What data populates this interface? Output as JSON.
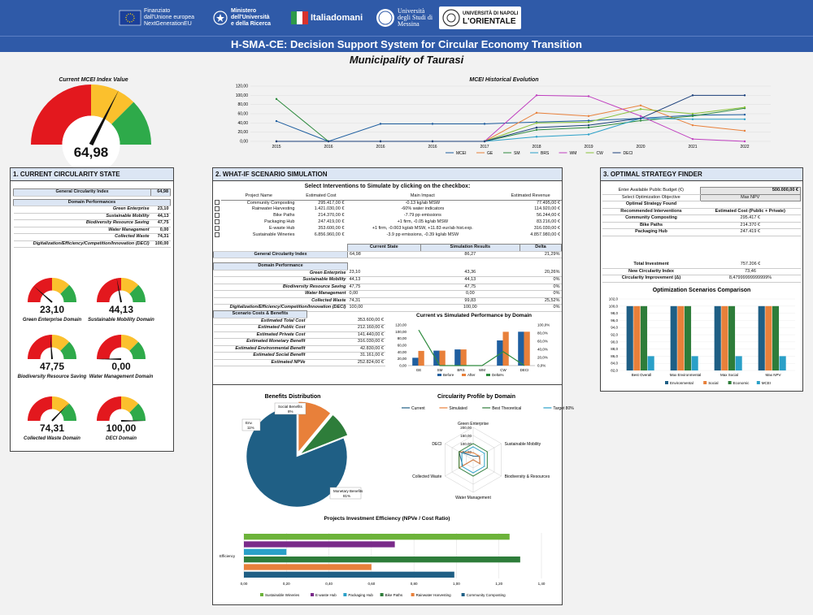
{
  "banner": {
    "logos": [
      {
        "name": "eu-logo",
        "lines": [
          "Finanziato",
          "dall'Unione europea",
          "NextGenerationEU"
        ]
      },
      {
        "name": "ministero-logo",
        "lines": [
          "Ministero",
          "dell'Università",
          "e della Ricerca"
        ]
      },
      {
        "name": "italiadomani-logo",
        "lines": [
          "Italiadomani"
        ]
      },
      {
        "name": "unime-logo",
        "lines": [
          "Università",
          "degli Studi di",
          "Messina"
        ]
      },
      {
        "name": "orientale-logo",
        "lines": [
          "UNIVERSITÀ DI NAPOLI",
          "L'ORIENTALE"
        ]
      }
    ]
  },
  "title": "H-SMA-CE: Decision Support System for Circular Economy Transition",
  "subtitle": "Municipality of Taurasi",
  "main_gauge": {
    "title": "Current MCEI Index Value",
    "value": "64,98",
    "level": 64.98
  },
  "history": {
    "title": "MCEI Historical Evolution",
    "years": [
      "2015",
      "2016",
      "2016",
      "2016",
      "2017",
      "2018",
      "2019",
      "2020",
      "2021",
      "2022"
    ],
    "y_ticks": [
      "0,00",
      "20,00",
      "40,00",
      "60,00",
      "80,00",
      "100,00",
      "120,00"
    ],
    "series": [
      {
        "name": "MCEI",
        "color": "#1f5fa0",
        "values": [
          44,
          0,
          38,
          38,
          38,
          42,
          45,
          50,
          57,
          58
        ]
      },
      {
        "name": "GE",
        "color": "#e8803a",
        "values": [
          0,
          0,
          0,
          0,
          0,
          62,
          55,
          78,
          35,
          23
        ]
      },
      {
        "name": "SM",
        "color": "#2e8b3e",
        "values": [
          92,
          0,
          0,
          0,
          0,
          25,
          30,
          45,
          55,
          72
        ]
      },
      {
        "name": "BRS",
        "color": "#2aa0c8",
        "values": [
          0,
          0,
          0,
          0,
          0,
          10,
          15,
          50,
          48,
          48
        ]
      },
      {
        "name": "WM",
        "color": "#c040c0",
        "values": [
          0,
          0,
          0,
          0,
          0,
          100,
          98,
          55,
          5,
          0
        ]
      },
      {
        "name": "CW",
        "color": "#8ac23a",
        "values": [
          0,
          0,
          0,
          0,
          0,
          40,
          42,
          70,
          60,
          74
        ]
      },
      {
        "name": "DECI",
        "color": "#1a3f7a",
        "values": [
          0,
          0,
          0,
          0,
          0,
          30,
          35,
          50,
          100,
          100
        ]
      }
    ]
  },
  "section1": {
    "header": "1. CURRENT CIRCULARITY STATE",
    "general_label": "General Circularity Index",
    "general_value": "64,98",
    "domain_header": "Domain Performances",
    "domains": [
      {
        "label": "Green Enterprise",
        "value": "23,10"
      },
      {
        "label": "Sustainable Mobility",
        "value": "44,13"
      },
      {
        "label": "Biodiversity Resource Saving",
        "value": "47,75"
      },
      {
        "label": "Water Management",
        "value": "0,00"
      },
      {
        "label": "Collected Waste",
        "value": "74,31"
      },
      {
        "label": "Digitalization/Efficiency/Competition/Innovation (DECI)",
        "value": "100,00"
      }
    ],
    "gauges": [
      {
        "value": "23,10",
        "level": 23.1,
        "label": "Green Enterprise Domain"
      },
      {
        "value": "44,13",
        "level": 44.13,
        "label": "Sustainable Mobility Domain"
      },
      {
        "value": "47,75",
        "level": 47.75,
        "label": "Biodiversity Resource Saving"
      },
      {
        "value": "0,00",
        "level": 0,
        "label": "Water Management Domain"
      },
      {
        "value": "74,31",
        "level": 74.31,
        "label": "Collected Waste Domain"
      },
      {
        "value": "100,00",
        "level": 100,
        "label": "DECI Domain"
      }
    ]
  },
  "section2": {
    "header": "2. WHAT-IF SCENARIO SIMULATION",
    "select_title": "Select Interventions to Simulate by clicking on the checkbox:",
    "columns": [
      "Project Name",
      "Estimated Cost",
      "Main Impact",
      "Estimated Revenue"
    ],
    "projects": [
      {
        "name": "Community Composting",
        "cost": "295.417,00 €",
        "impact": "-0.13 kg/ab MSW",
        "revenue": "77.495,00 €"
      },
      {
        "name": "Rainwater Harvesting",
        "cost": "1.421.030,00 €",
        "impact": "-60% water indicators",
        "revenue": "114.920,00 €"
      },
      {
        "name": "Bike Paths",
        "cost": "214.370,00 €",
        "impact": "-7.79 pp emissions",
        "revenue": "56.244,00 €"
      },
      {
        "name": "Packaging Hub",
        "cost": "247.419,00 €",
        "impact": "+1 firm, -0.05 kg/ab MSW",
        "revenue": "83.216,00 €"
      },
      {
        "name": "E-waste Hub",
        "cost": "353.600,00 €",
        "impact": "+1 firm, -0.003 kg/ab MSW, +11.83 eur/ab hist.exp.",
        "revenue": "316.030,00 €"
      },
      {
        "name": "Sustainable Wineries",
        "cost": "6.856.960,00 €",
        "impact": "-3.9 pp emissions, -0.39 kg/ab MSW",
        "revenue": "4.857.980,00 €"
      }
    ],
    "sim_columns": [
      "Current State",
      "Simulation Results",
      "Delta"
    ],
    "sim_general": {
      "label": "General Circularity Index",
      "current": "64,98",
      "sim": "86,27",
      "delta": "21,29%"
    },
    "domain_perf_header": "Domain Performance",
    "sim_domains": [
      {
        "label": "Green Enterprise",
        "current": "23,10",
        "sim": "43,36",
        "delta": "20,26%"
      },
      {
        "label": "Sustainable Mobility",
        "current": "44,13",
        "sim": "44,13",
        "delta": "0%"
      },
      {
        "label": "Biodiversity Resource Saving",
        "current": "47,75",
        "sim": "47,75",
        "delta": "0%"
      },
      {
        "label": "Water Management",
        "current": "0,00",
        "sim": "0,00",
        "delta": "0%"
      },
      {
        "label": "Collected Waste",
        "current": "74,31",
        "sim": "99,83",
        "delta": "25,52%"
      },
      {
        "label": "Digitalization/Efficiency/Competition/Innovation (DECI)",
        "current": "100,00",
        "sim": "100,00",
        "delta": "0%"
      }
    ],
    "costs_header": "Scenario Costs & Benefits",
    "costs": [
      {
        "label": "Estimated Total Cost",
        "value": "353.600,00 €"
      },
      {
        "label": "Estimated Public Cost",
        "value": "212.160,00 €"
      },
      {
        "label": "Estimated Private Cost",
        "value": "141.440,00 €"
      },
      {
        "label": "Estimated Monetary Benefit",
        "value": "316.030,00 €"
      },
      {
        "label": "Estimated Environmental Benefit",
        "value": "42.830,00 €"
      },
      {
        "label": "Estimated Social Benefit",
        "value": "31.161,00 €"
      },
      {
        "label": "Estimated NPVe",
        "value": "252.824,00 €"
      }
    ]
  },
  "chart_data": [
    {
      "type": "bar",
      "title": "Current vs Simulated Performance by Domain",
      "categories": [
        "GE",
        "SM",
        "BRS",
        "WM",
        "CW",
        "DECI"
      ],
      "y_ticks": [
        "0,00",
        "20,00",
        "40,00",
        "60,00",
        "80,00",
        "100,00",
        "120,00"
      ],
      "y2_ticks": [
        "0,0%",
        "20,0%",
        "40,0%",
        "60,0%",
        "80,0%",
        "100,0%"
      ],
      "series": [
        {
          "name": "Before",
          "color": "#1f5fa0",
          "values": [
            23.1,
            44.13,
            47.75,
            0,
            74.31,
            100
          ]
        },
        {
          "name": "After",
          "color": "#e8803a",
          "values": [
            43.36,
            44.13,
            47.75,
            0,
            99.83,
            100
          ]
        },
        {
          "name": "Delta%",
          "color": "#2e8b3e",
          "values": [
            87.7,
            0,
            0,
            0,
            34.3,
            0
          ]
        }
      ]
    },
    {
      "type": "pie",
      "title": "Benefits Distribution",
      "slices": [
        {
          "label": "Monetary Benefits",
          "pct": "81%",
          "value": 81,
          "color": "#1f5f85"
        },
        {
          "label": "Environmental Benefits",
          "pct": "11%",
          "value": 11,
          "color": "#e8803a"
        },
        {
          "label": "Social Benefits",
          "pct": "8%",
          "value": 8,
          "color": "#2e7d3a"
        }
      ]
    },
    {
      "type": "radar",
      "title": "Circularity Profile by Domain",
      "axes": [
        "Green Enterprise",
        "Sustainable Mobility",
        "Biodiversity & Resources",
        "Water Management",
        "Collected Waste",
        "DECI"
      ],
      "r_ticks": [
        "50,00",
        "100,00",
        "150,00",
        "200,00"
      ],
      "series": [
        {
          "name": "Current",
          "color": "#1f5f85",
          "values": [
            23.1,
            44.13,
            47.75,
            0,
            74.31,
            100
          ]
        },
        {
          "name": "Simulated",
          "color": "#e8803a",
          "values": [
            43.36,
            44.13,
            47.75,
            0,
            99.83,
            100
          ]
        },
        {
          "name": "Best Theoretical",
          "color": "#2e7d3a",
          "values": [
            100,
            100,
            100,
            100,
            100,
            100
          ]
        },
        {
          "name": "Target 80%",
          "color": "#2aa0c8",
          "values": [
            80,
            80,
            80,
            80,
            80,
            80
          ]
        }
      ]
    },
    {
      "type": "bar",
      "title": "Projects Investment Efficiency (NPVe / Cost Ratio)",
      "category": "Efficiency",
      "x_ticks": [
        "0,00",
        "0,20",
        "0,40",
        "0,60",
        "0,80",
        "1,00",
        "1,20",
        "1,40"
      ],
      "series": [
        {
          "name": "Sustainable Wineries",
          "color": "#6cb33a",
          "value": 1.25
        },
        {
          "name": "E-waste Hub",
          "color": "#7a2a8a",
          "value": 0.71
        },
        {
          "name": "Packaging Hub",
          "color": "#2aa0c8",
          "value": 0.2
        },
        {
          "name": "Bike Paths",
          "color": "#2e7d3a",
          "value": 1.3
        },
        {
          "name": "Rainwater Harvesting",
          "color": "#e8803a",
          "value": 0.6
        },
        {
          "name": "Community Composting",
          "color": "#1f5f85",
          "value": 0.99
        }
      ]
    },
    {
      "type": "bar",
      "title": "Optimization Scenarios Comparison",
      "categories": [
        "Best Overall",
        "Max Environmental",
        "Max Social",
        "Max NPV"
      ],
      "y_ticks": [
        "82,0",
        "84,0",
        "86,0",
        "88,0",
        "90,0",
        "92,0",
        "94,0",
        "96,0",
        "98,0",
        "100,0",
        "102,0"
      ],
      "series": [
        {
          "name": "Environmental",
          "color": "#1f5f85",
          "values": [
            100,
            100,
            100,
            100
          ]
        },
        {
          "name": "Social",
          "color": "#e8803a",
          "values": [
            100,
            100,
            100,
            100
          ]
        },
        {
          "name": "Economic",
          "color": "#2e7d3a",
          "values": [
            100,
            100,
            100,
            100
          ]
        },
        {
          "name": "MCEI",
          "color": "#2aa0c8",
          "values": [
            86,
            86,
            86,
            86
          ]
        }
      ]
    }
  ],
  "section3": {
    "header": "3. OPTIMAL STRATEGY FINDER",
    "budget_label": "Enter Available Public Budget (€)",
    "budget_value": "500.000,00 €",
    "objective_label": "Select Optimization Objective",
    "objective_value": "Max NPV",
    "optimal_label": "Optimal Strategy Found",
    "recommended_label": "Recommended Interventions",
    "cost_header": "Estimated Cost (Public + Private)",
    "interventions": [
      {
        "name": "Community Composting",
        "cost": "295.417 €"
      },
      {
        "name": "Bike Paths",
        "cost": "214.370 €"
      },
      {
        "name": "Packaging Hub",
        "cost": "247.419 €"
      }
    ],
    "total_label": "Total Investment",
    "total_value": "757.206 €",
    "new_index_label": "New Circularity Index",
    "new_index_value": "73,46",
    "improvement_label": "Circularity Improvement (Δ)",
    "improvement_value": "8,47999999999999%"
  }
}
